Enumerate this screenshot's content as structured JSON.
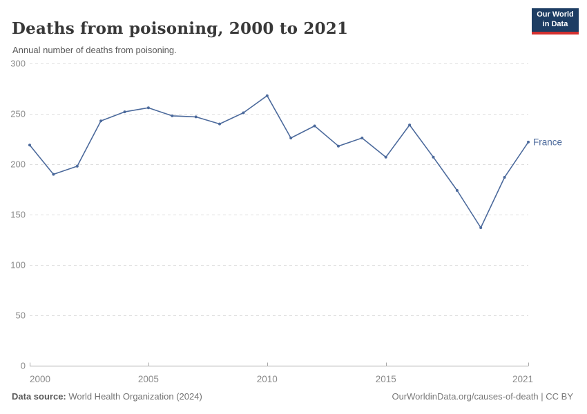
{
  "header": {
    "title": "Deaths from poisoning, 2000 to 2021",
    "subtitle": "Annual number of deaths from poisoning.",
    "logo": {
      "line1": "Our World",
      "line2": "in Data",
      "bg_color": "#1d3d63",
      "accent_color": "#d3302f"
    }
  },
  "chart_data": {
    "type": "line",
    "title": "Deaths from poisoning, 2000 to 2021",
    "xlabel": "",
    "ylabel": "",
    "xlim": [
      2000,
      2021
    ],
    "ylim": [
      0,
      300
    ],
    "x_ticks": [
      2000,
      2005,
      2010,
      2015,
      2021
    ],
    "y_ticks": [
      0,
      50,
      100,
      150,
      200,
      250,
      300
    ],
    "grid": "horizontal-dashed",
    "legend_position": "end-of-line-label",
    "series": [
      {
        "name": "France",
        "color": "#4C6A9C",
        "x": [
          2000,
          2001,
          2002,
          2003,
          2004,
          2005,
          2006,
          2007,
          2008,
          2009,
          2010,
          2011,
          2012,
          2013,
          2014,
          2015,
          2016,
          2017,
          2018,
          2019,
          2020,
          2021
        ],
        "values": [
          219,
          190,
          198,
          243,
          252,
          256,
          248,
          247,
          240,
          251,
          268,
          226,
          238,
          218,
          226,
          207,
          239,
          207,
          174,
          137,
          187,
          222
        ]
      }
    ],
    "colors": {
      "grid": "#dedede",
      "axis": "#a8a8a8",
      "tick_label": "#8a8a8a"
    }
  },
  "footer": {
    "source_label": "Data source:",
    "source_text": " World Health Organization (2024)",
    "attribution": "OurWorldinData.org/causes-of-death | CC BY"
  }
}
